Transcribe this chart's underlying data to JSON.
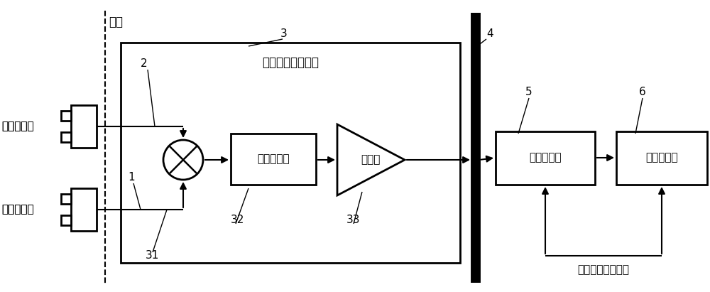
{
  "bg_color": "#ffffff",
  "line_color": "#000000",
  "text_color": "#000000",
  "beam_label": "束流",
  "label_2": "2",
  "label_1": "1",
  "label_3": "3",
  "label_4": "4",
  "label_5": "5",
  "label_6": "6",
  "label_31": "31",
  "label_32": "32",
  "label_33": "33",
  "measure_cavity_label": "测量相位腔",
  "reference_cavity_label": "基准相位腔",
  "rf_frontend_label": "射频信号处理前端",
  "lpf_label": "低通滤波器",
  "amp_label": "放大器",
  "daq_label": "数据采集器",
  "signal_proc_label": "信号处理器",
  "clock_label": "采样基准时钟信号"
}
